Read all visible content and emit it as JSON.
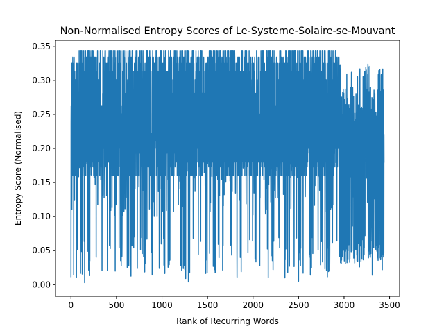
{
  "chart_data": {
    "type": "line",
    "title": "Non-Normalised Entropy Scores of Le-Systeme-Solaire-se-Mouvant",
    "xlabel": "Rank of Recurring Words",
    "ylabel": "Entropy Score (Normalised)",
    "xlim": [
      -170,
      3610
    ],
    "ylim": [
      -0.017,
      0.359
    ],
    "xticks": [
      0,
      500,
      1000,
      1500,
      2000,
      2500,
      3000,
      3500
    ],
    "yticks": [
      0.0,
      0.05,
      0.1,
      0.15,
      0.2,
      0.25,
      0.3,
      0.35
    ],
    "grid": false,
    "series": [
      {
        "name": "",
        "color": "#1f77b4",
        "n_points": 3440,
        "x_range": [
          0,
          3440
        ],
        "y_range": [
          0.003,
          0.344
        ],
        "typical_band": [
          0.17,
          0.33
        ],
        "tail_band_after_2950": [
          0.03,
          0.32
        ],
        "notable_dips": [
          {
            "x": 0,
            "y": 0.011
          },
          {
            "x": 60,
            "y": 0.011
          },
          {
            "x": 150,
            "y": 0.003
          },
          {
            "x": 400,
            "y": 0.021
          },
          {
            "x": 670,
            "y": 0.057
          },
          {
            "x": 1030,
            "y": 0.022
          },
          {
            "x": 1260,
            "y": 0.009
          },
          {
            "x": 1290,
            "y": 0.004
          },
          {
            "x": 1580,
            "y": 0.022
          },
          {
            "x": 1870,
            "y": 0.019
          },
          {
            "x": 2220,
            "y": 0.022
          },
          {
            "x": 2350,
            "y": 0.01
          },
          {
            "x": 2500,
            "y": 0.005
          },
          {
            "x": 3170,
            "y": 0.026
          },
          {
            "x": 3310,
            "y": 0.014
          },
          {
            "x": 3420,
            "y": 0.022
          }
        ]
      }
    ]
  }
}
